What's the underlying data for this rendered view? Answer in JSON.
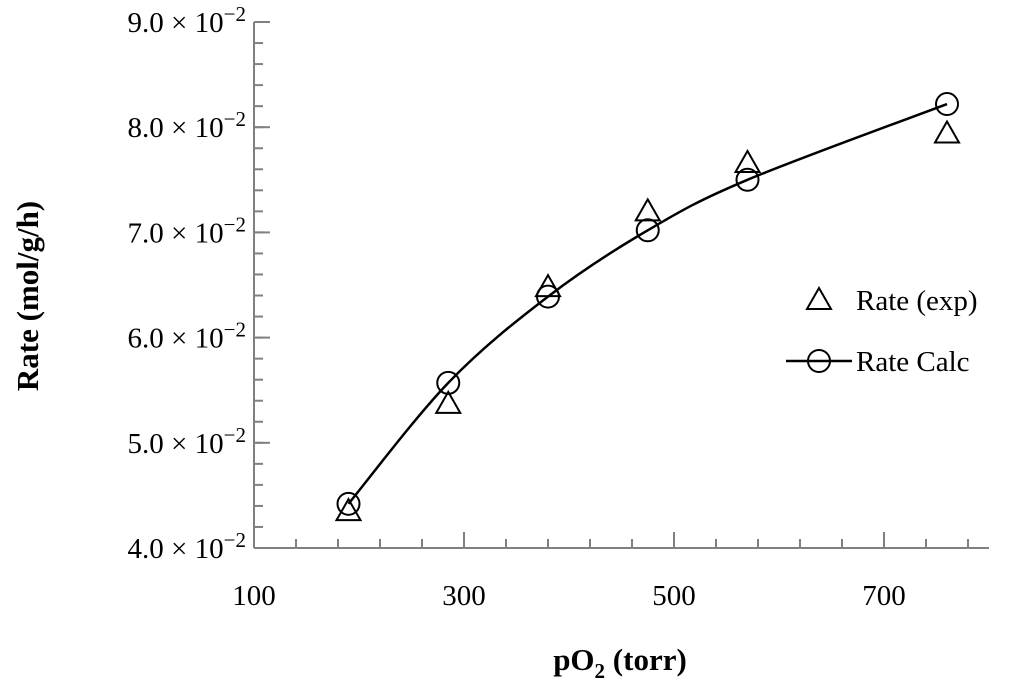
{
  "chart_data": {
    "type": "scatter",
    "xlabel_main": "pO",
    "xlabel_sub": "2",
    "xlabel_rest": " (torr)",
    "ylabel": "Rate (mol/g/h)",
    "xlim": [
      100,
      800
    ],
    "ylim": [
      0.04,
      0.09
    ],
    "x_ticks": [
      100,
      300,
      500,
      700
    ],
    "x_tick_labels": [
      "100",
      "300",
      "500",
      "700"
    ],
    "x_minor_step": 40,
    "y_ticks": [
      0.04,
      0.05,
      0.06,
      0.07,
      0.08,
      0.09
    ],
    "y_tick_mantissa": [
      "4.0",
      "5.0",
      "6.0",
      "7.0",
      "8.0",
      "9.0"
    ],
    "y_tick_mult": " × 10",
    "y_tick_exp": "−2",
    "y_minor_step": 0.002,
    "legend_position": "right",
    "series": [
      {
        "name": "Rate (exp)",
        "marker": "triangle",
        "line": false,
        "x": [
          190,
          285,
          380,
          475,
          570,
          760
        ],
        "y": [
          0.0435,
          0.0537,
          0.0648,
          0.072,
          0.0766,
          0.0794
        ]
      },
      {
        "name": "Rate Calc",
        "marker": "circle",
        "line": true,
        "x": [
          190,
          285,
          380,
          475,
          570,
          760
        ],
        "y": [
          0.0442,
          0.0557,
          0.0639,
          0.0702,
          0.075,
          0.0822
        ]
      }
    ]
  }
}
